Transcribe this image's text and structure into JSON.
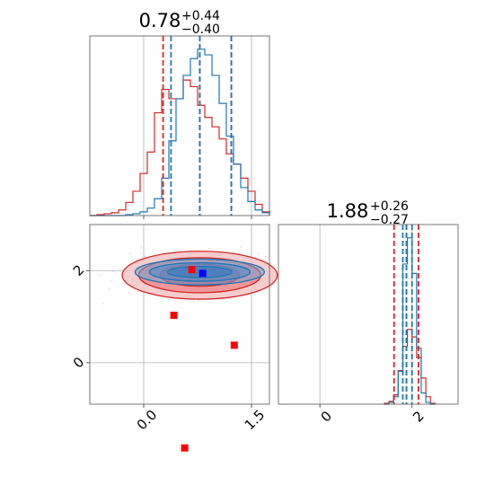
{
  "chart_data": {
    "type": "corner",
    "colors": {
      "series_a": "#1f77b4",
      "series_b": "#d62728",
      "marker_a": "#0000ff",
      "marker_b": "#ff0000"
    },
    "parameters": [
      {
        "title_main": "0.78",
        "title_sup": "+0.44",
        "title_sub": "−0.40",
        "range": [
          -0.75,
          1.75
        ],
        "ticks": [
          0.0,
          1.5
        ],
        "tick_labels": [
          "0.0",
          "1.5"
        ],
        "histogram": {
          "bins": [
            -0.75,
            -0.65,
            -0.55,
            -0.45,
            -0.35,
            -0.25,
            -0.15,
            -0.05,
            0.05,
            0.15,
            0.25,
            0.35,
            0.45,
            0.55,
            0.65,
            0.75,
            0.85,
            0.95,
            1.05,
            1.15,
            1.25,
            1.35,
            1.45,
            1.55,
            1.65,
            1.75
          ],
          "series_a_counts": [
            0,
            0,
            0,
            0,
            0,
            1,
            2,
            4,
            8,
            18,
            40,
            80,
            125,
            150,
            168,
            178,
            172,
            150,
            120,
            85,
            55,
            30,
            15,
            6,
            3
          ],
          "series_b_counts": [
            0,
            1,
            2,
            3,
            6,
            14,
            26,
            45,
            68,
            110,
            135,
            125,
            125,
            145,
            138,
            118,
            105,
            95,
            82,
            66,
            55,
            40,
            26,
            12,
            4
          ]
        },
        "quantile_lines_a": [
          0.38,
          0.78,
          1.22
        ],
        "quantile_lines_b": [
          0.27,
          0.78,
          1.22
        ]
      },
      {
        "title_main": "1.88",
        "title_sup": "+0.26",
        "title_sub": "−0.27",
        "range": [
          -0.9,
          3.0
        ],
        "ticks": [
          0,
          2
        ],
        "tick_labels": [
          "0",
          "2"
        ],
        "histogram": {
          "bins": [
            1.4,
            1.5,
            1.6,
            1.7,
            1.8,
            1.9,
            2.0,
            2.1,
            2.2,
            2.3,
            2.4,
            2.5
          ],
          "series_a_counts": [
            0,
            2,
            8,
            35,
            150,
            178,
            140,
            60,
            12,
            2,
            0
          ],
          "series_b_counts": [
            1,
            3,
            10,
            36,
            62,
            80,
            72,
            50,
            28,
            8,
            1
          ]
        },
        "quantile_lines_a": [
          1.8,
          1.88,
          2.0
        ],
        "quantile_lines_b": [
          1.61,
          1.88,
          2.14
        ]
      }
    ],
    "joint": {
      "x_range": [
        -0.75,
        1.75
      ],
      "y_range": [
        -0.9,
        3.0
      ],
      "series_a_contours": [
        {
          "cx": 0.78,
          "cy": 1.97,
          "rx": 0.9,
          "ry": 0.28
        },
        {
          "cx": 0.78,
          "cy": 1.97,
          "rx": 0.7,
          "ry": 0.2
        },
        {
          "cx": 0.78,
          "cy": 1.97,
          "rx": 0.45,
          "ry": 0.12
        }
      ],
      "series_b_contours": [
        {
          "cx": 0.78,
          "cy": 1.9,
          "rx": 1.08,
          "ry": 0.52
        },
        {
          "cx": 0.78,
          "cy": 1.9,
          "rx": 0.85,
          "ry": 0.38
        },
        {
          "cx": 0.78,
          "cy": 1.9,
          "rx": 0.55,
          "ry": 0.24
        }
      ],
      "markers_b": [
        {
          "x": 0.67,
          "y": 2.02
        },
        {
          "x": 0.42,
          "y": 1.03
        },
        {
          "x": 1.26,
          "y": 0.38
        },
        {
          "x": 0.57,
          "y": -1.85
        }
      ],
      "markers_a": [
        {
          "x": 0.82,
          "y": 1.94
        }
      ]
    }
  }
}
